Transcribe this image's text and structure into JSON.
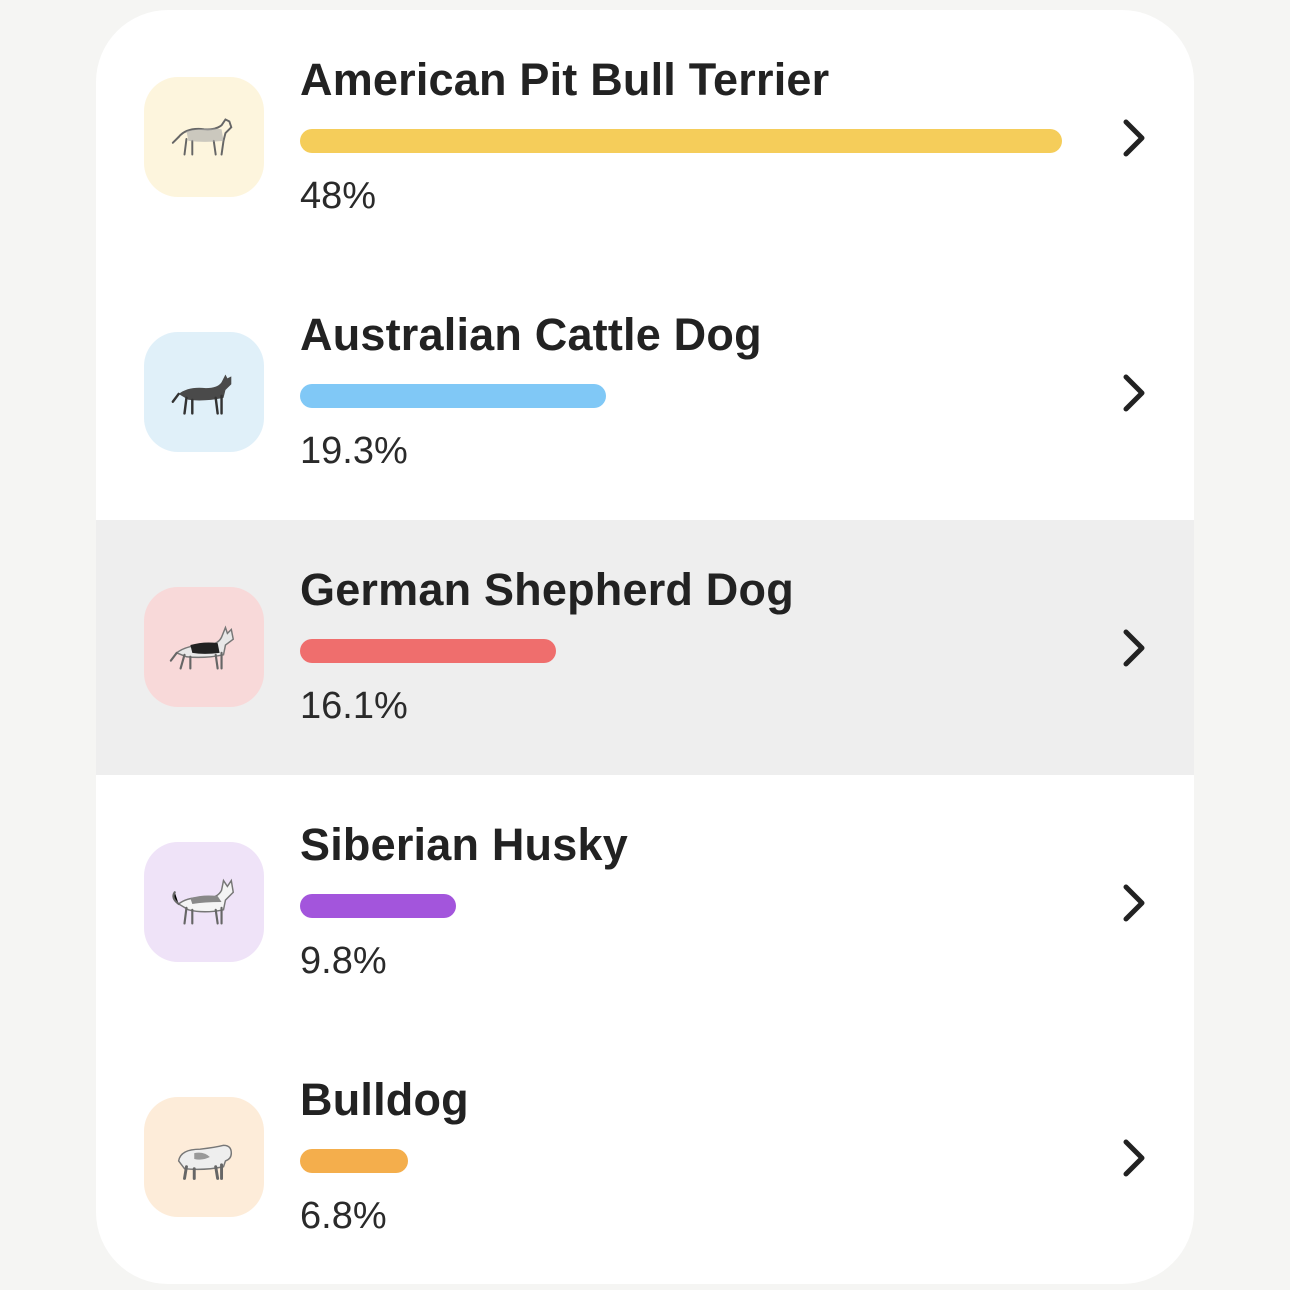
{
  "breeds": [
    {
      "name": "American Pit Bull Terrier",
      "percent_label": "48%",
      "percent": 48,
      "color": "#f5cd5a",
      "icon_bg": "#fdf5dd",
      "icon": "pit-bull-icon",
      "selected": false
    },
    {
      "name": "Australian Cattle Dog",
      "percent_label": "19.3%",
      "percent": 19.3,
      "color": "#80c8f6",
      "icon_bg": "#e0f0f9",
      "icon": "cattle-dog-icon",
      "selected": false
    },
    {
      "name": "German Shepherd Dog",
      "percent_label": "16.1%",
      "percent": 16.1,
      "color": "#ef6e6d",
      "icon_bg": "#f8d9d9",
      "icon": "german-shepherd-icon",
      "selected": true
    },
    {
      "name": "Siberian Husky",
      "percent_label": "9.8%",
      "percent": 9.8,
      "color": "#a355dc",
      "icon_bg": "#efe3f8",
      "icon": "husky-icon",
      "selected": false
    },
    {
      "name": "Bulldog",
      "percent_label": "6.8%",
      "percent": 6.8,
      "color": "#f4ae4c",
      "icon_bg": "#fdecd9",
      "icon": "bulldog-icon",
      "selected": false
    }
  ],
  "bar_scale_max_percent": 48,
  "chevron_icon": "chevron-right-icon"
}
